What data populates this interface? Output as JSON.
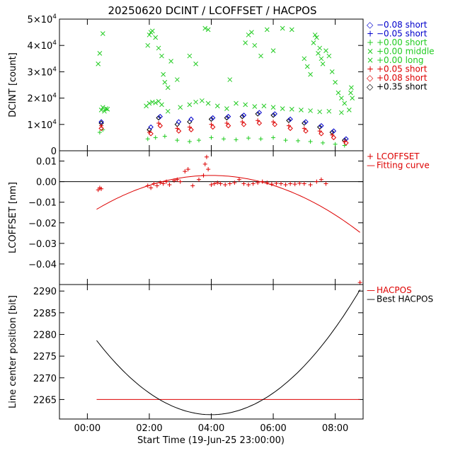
{
  "title": "20250620 DCINT / LCOFFSET / HACPOS",
  "x_axis": {
    "label": "Start Time (19-Jun-25 23:00:00)",
    "ticks": [
      "00:00",
      "02:00",
      "04:00",
      "06:00",
      "08:00"
    ],
    "tick_values_hours": [
      1,
      3,
      5,
      7,
      9
    ],
    "range_hours": [
      0.1,
      9.9
    ]
  },
  "chart_data": [
    {
      "type": "scatter",
      "name": "dcint-panel",
      "ylabel": "DCINT [count]",
      "ylim": [
        0,
        50000
      ],
      "y_ticks": [
        {
          "value": 0,
          "mant": "0",
          "exp": ""
        },
        {
          "value": 10000,
          "mant": "1×10",
          "exp": "4"
        },
        {
          "value": 20000,
          "mant": "2×10",
          "exp": "4"
        },
        {
          "value": 30000,
          "mant": "3×10",
          "exp": "4"
        },
        {
          "value": 40000,
          "mant": "4×10",
          "exp": "4"
        },
        {
          "value": 50000,
          "mant": "5×10",
          "exp": "4"
        }
      ],
      "legend": [
        {
          "symbol": "◇",
          "text": "−0.08 short",
          "color": "#0000cc"
        },
        {
          "symbol": "+",
          "text": "−0.05 short",
          "color": "#0000cc"
        },
        {
          "symbol": "+",
          "text": "+0.00 short",
          "color": "#22cc22"
        },
        {
          "symbol": "×",
          "text": "+0.00 middle",
          "color": "#22cc22"
        },
        {
          "symbol": "×",
          "text": "+0.00 long",
          "color": "#22cc22"
        },
        {
          "symbol": "+",
          "text": "+0.05 short",
          "color": "#dd0000"
        },
        {
          "symbol": "◇",
          "text": "+0.08 short",
          "color": "#dd0000"
        },
        {
          "symbol": "◇",
          "text": "+0.35 short",
          "color": "#000000"
        }
      ],
      "series": [
        {
          "name": "+0.00 long",
          "marker": "x",
          "color": "#22cc22",
          "points": [
            [
              1.45,
              15500
            ],
            [
              1.5,
              16500
            ],
            [
              1.55,
              15000
            ],
            [
              1.6,
              16000
            ],
            [
              1.65,
              15800
            ],
            [
              2.9,
              17000
            ],
            [
              3.0,
              18000
            ],
            [
              3.1,
              18500
            ],
            [
              3.2,
              18200
            ],
            [
              3.3,
              18800
            ],
            [
              3.4,
              17500
            ],
            [
              3.6,
              15000
            ],
            [
              4.0,
              16500
            ],
            [
              4.3,
              17500
            ],
            [
              4.5,
              18500
            ],
            [
              4.7,
              19000
            ],
            [
              4.9,
              18000
            ],
            [
              5.2,
              17000
            ],
            [
              5.5,
              16000
            ],
            [
              5.8,
              18000
            ],
            [
              6.1,
              17500
            ],
            [
              6.4,
              16800
            ],
            [
              6.7,
              17000
            ],
            [
              7.0,
              16500
            ],
            [
              7.3,
              16000
            ],
            [
              7.6,
              15800
            ],
            [
              7.9,
              15500
            ],
            [
              8.2,
              15200
            ],
            [
              8.5,
              14800
            ],
            [
              8.8,
              15000
            ],
            [
              9.2,
              14500
            ],
            [
              9.45,
              15500
            ],
            [
              9.5,
              22000
            ],
            [
              9.52,
              24000
            ],
            [
              9.55,
              20000
            ]
          ]
        },
        {
          "name": "+0.00 middle",
          "marker": "x",
          "color": "#22cc22",
          "points": [
            [
              1.35,
              33000
            ],
            [
              1.5,
              44500
            ],
            [
              1.4,
              37000
            ],
            [
              2.95,
              40000
            ],
            [
              3.0,
              44000
            ],
            [
              3.05,
              45000
            ],
            [
              3.1,
              45500
            ],
            [
              3.2,
              43000
            ],
            [
              3.3,
              39000
            ],
            [
              3.4,
              36000
            ],
            [
              3.45,
              29000
            ],
            [
              3.5,
              26000
            ],
            [
              3.6,
              24000
            ],
            [
              3.7,
              34000
            ],
            [
              3.9,
              27000
            ],
            [
              4.3,
              36000
            ],
            [
              4.5,
              33000
            ],
            [
              4.8,
              46500
            ],
            [
              4.9,
              46000
            ],
            [
              5.6,
              27000
            ],
            [
              6.1,
              41000
            ],
            [
              6.2,
              44000
            ],
            [
              6.3,
              45000
            ],
            [
              6.4,
              40000
            ],
            [
              6.6,
              36000
            ],
            [
              6.8,
              46000
            ],
            [
              7.0,
              38000
            ],
            [
              7.3,
              46500
            ],
            [
              7.6,
              46000
            ],
            [
              8.0,
              35000
            ],
            [
              8.1,
              32000
            ],
            [
              8.2,
              29000
            ],
            [
              8.3,
              41000
            ],
            [
              8.35,
              44000
            ],
            [
              8.4,
              43000
            ],
            [
              8.45,
              37000
            ],
            [
              8.5,
              39000
            ],
            [
              8.55,
              35000
            ],
            [
              8.6,
              33000
            ],
            [
              8.7,
              38000
            ],
            [
              8.8,
              36000
            ],
            [
              8.9,
              30000
            ],
            [
              9.0,
              26000
            ],
            [
              9.1,
              22000
            ],
            [
              9.2,
              20000
            ],
            [
              9.3,
              18000
            ]
          ]
        },
        {
          "name": "+0.00 short",
          "marker": "plus",
          "color": "#22cc22",
          "points": [
            [
              1.4,
              7000
            ],
            [
              1.5,
              8000
            ],
            [
              2.95,
              4500
            ],
            [
              3.2,
              5000
            ],
            [
              3.5,
              5500
            ],
            [
              3.9,
              4000
            ],
            [
              4.3,
              3500
            ],
            [
              4.6,
              4000
            ],
            [
              5.0,
              5000
            ],
            [
              5.4,
              4500
            ],
            [
              5.8,
              4200
            ],
            [
              6.2,
              4800
            ],
            [
              6.6,
              4500
            ],
            [
              7.0,
              5000
            ],
            [
              7.4,
              4000
            ],
            [
              7.8,
              3800
            ],
            [
              8.2,
              3500
            ],
            [
              8.6,
              3000
            ],
            [
              9.0,
              2500
            ],
            [
              9.3,
              2000
            ]
          ]
        },
        {
          "name": "+0.35 short",
          "marker": "diamond",
          "color": "#000000",
          "points": [
            [
              1.45,
              10500
            ],
            [
              3.0,
              8000
            ],
            [
              3.3,
              12500
            ],
            [
              3.9,
              10000
            ],
            [
              4.3,
              11000
            ],
            [
              5.0,
              12000
            ],
            [
              5.5,
              12500
            ],
            [
              6.0,
              13000
            ],
            [
              6.5,
              14000
            ],
            [
              7.0,
              13500
            ],
            [
              7.5,
              11500
            ],
            [
              8.0,
              10500
            ],
            [
              8.5,
              9000
            ],
            [
              8.9,
              7000
            ],
            [
              9.3,
              4000
            ]
          ]
        },
        {
          "name": "−0.08 short",
          "marker": "diamond",
          "color": "#0000cc",
          "points": [
            [
              1.45,
              11000
            ],
            [
              3.05,
              9000
            ],
            [
              3.35,
              13000
            ],
            [
              3.95,
              11000
            ],
            [
              4.35,
              12000
            ],
            [
              5.05,
              12500
            ],
            [
              5.55,
              13000
            ],
            [
              6.05,
              13500
            ],
            [
              6.55,
              14500
            ],
            [
              7.05,
              14000
            ],
            [
              7.55,
              12000
            ],
            [
              8.05,
              11000
            ],
            [
              8.55,
              9500
            ],
            [
              8.95,
              7500
            ],
            [
              9.35,
              4500
            ]
          ]
        },
        {
          "name": "+0.05 short",
          "marker": "plus",
          "color": "#dd0000",
          "points": [
            [
              1.45,
              9500
            ],
            [
              3.0,
              7000
            ],
            [
              3.3,
              10500
            ],
            [
              3.9,
              8500
            ],
            [
              4.3,
              9000
            ],
            [
              5.0,
              10000
            ],
            [
              5.5,
              10500
            ],
            [
              6.0,
              11000
            ],
            [
              6.5,
              11500
            ],
            [
              7.0,
              11000
            ],
            [
              7.5,
              9500
            ],
            [
              8.0,
              8500
            ],
            [
              8.5,
              7500
            ],
            [
              8.9,
              6000
            ],
            [
              9.3,
              3500
            ]
          ]
        },
        {
          "name": "+0.08 short",
          "marker": "diamond",
          "color": "#dd0000",
          "points": [
            [
              1.45,
              8500
            ],
            [
              3.05,
              6500
            ],
            [
              3.35,
              9500
            ],
            [
              3.95,
              7500
            ],
            [
              4.35,
              8000
            ],
            [
              5.05,
              9000
            ],
            [
              5.55,
              9500
            ],
            [
              6.05,
              10000
            ],
            [
              6.55,
              10500
            ],
            [
              7.05,
              10000
            ],
            [
              7.55,
              8500
            ],
            [
              8.05,
              7500
            ],
            [
              8.55,
              6500
            ],
            [
              8.95,
              5000
            ],
            [
              9.35,
              3000
            ]
          ]
        }
      ]
    },
    {
      "type": "scatter",
      "name": "lcoffset-panel",
      "ylabel": "LCOFFSET [nm]",
      "ylim": [
        -0.05,
        0.015
      ],
      "y_ticks": [
        {
          "value": 0.01,
          "label": "0.01"
        },
        {
          "value": 0.0,
          "label": "0.00"
        },
        {
          "value": -0.01,
          "label": "−0.01"
        },
        {
          "value": -0.02,
          "label": "−0.02"
        },
        {
          "value": -0.03,
          "label": "−0.03"
        },
        {
          "value": -0.04,
          "label": "−0.04"
        }
      ],
      "legend": [
        {
          "symbol": "+",
          "text": "LCOFFSET",
          "color": "#dd0000"
        },
        {
          "symbol": "—",
          "text": "Fitting curve",
          "color": "#dd0000"
        }
      ],
      "zero_line": 0.0,
      "fit_curve": {
        "x_start": 1.3,
        "x_end": 9.8,
        "vertex_x": 5.0,
        "vertex_y": 0.003,
        "curvature": -0.0012
      },
      "points": [
        [
          1.35,
          -0.004
        ],
        [
          1.4,
          -0.003
        ],
        [
          1.45,
          -0.0035
        ],
        [
          2.95,
          -0.002
        ],
        [
          3.05,
          -0.003
        ],
        [
          3.15,
          -0.001
        ],
        [
          3.25,
          -0.002
        ],
        [
          3.35,
          -0.0005
        ],
        [
          3.45,
          -0.001
        ],
        [
          3.55,
          0.0
        ],
        [
          3.65,
          -0.0015
        ],
        [
          3.8,
          0.0005
        ],
        [
          3.9,
          0.001
        ],
        [
          4.0,
          0.0
        ],
        [
          4.15,
          0.005
        ],
        [
          4.25,
          0.006
        ],
        [
          4.4,
          -0.002
        ],
        [
          4.6,
          0.001
        ],
        [
          4.75,
          0.003
        ],
        [
          4.8,
          0.0085
        ],
        [
          4.85,
          0.012
        ],
        [
          4.9,
          0.006
        ],
        [
          5.0,
          -0.0015
        ],
        [
          5.1,
          -0.001
        ],
        [
          5.2,
          -0.0005
        ],
        [
          5.3,
          -0.001
        ],
        [
          5.45,
          -0.0015
        ],
        [
          5.6,
          -0.001
        ],
        [
          5.75,
          -0.0005
        ],
        [
          5.9,
          0.001
        ],
        [
          6.05,
          -0.001
        ],
        [
          6.2,
          -0.0015
        ],
        [
          6.35,
          -0.001
        ],
        [
          6.5,
          -0.0005
        ],
        [
          6.65,
          0.0
        ],
        [
          6.8,
          -0.0005
        ],
        [
          6.95,
          -0.0012
        ],
        [
          7.1,
          -0.0008
        ],
        [
          7.25,
          -0.001
        ],
        [
          7.4,
          -0.0015
        ],
        [
          7.55,
          -0.001
        ],
        [
          7.7,
          -0.0012
        ],
        [
          7.85,
          -0.0008
        ],
        [
          8.0,
          -0.001
        ],
        [
          8.2,
          -0.0015
        ],
        [
          8.4,
          0.0
        ],
        [
          8.55,
          0.001
        ],
        [
          8.7,
          -0.001
        ],
        [
          9.8,
          -0.049
        ]
      ]
    },
    {
      "type": "line",
      "name": "hacpos-panel",
      "ylabel": "Line center position [bit]",
      "ylim": [
        2260.5,
        2291.5
      ],
      "y_ticks": [
        {
          "value": 2265,
          "label": "2265"
        },
        {
          "value": 2270,
          "label": "2270"
        },
        {
          "value": 2275,
          "label": "2275"
        },
        {
          "value": 2280,
          "label": "2280"
        },
        {
          "value": 2285,
          "label": "2285"
        },
        {
          "value": 2290,
          "label": "2290"
        }
      ],
      "legend": [
        {
          "symbol": "—",
          "text": "HACPOS",
          "color": "#dd0000"
        },
        {
          "symbol": "—",
          "text": "Best HACPOS",
          "color": "#000000"
        }
      ],
      "hacpos_line": {
        "x_start": 1.3,
        "x_end": 9.8,
        "value": 2265,
        "color": "#dd0000"
      },
      "best_hacpos_curve": {
        "x_start": 1.3,
        "x_end": 9.8,
        "vertex_x": 5.0,
        "vertex_y": 2261.5,
        "curvature": 1.25,
        "color": "#000000"
      }
    }
  ]
}
